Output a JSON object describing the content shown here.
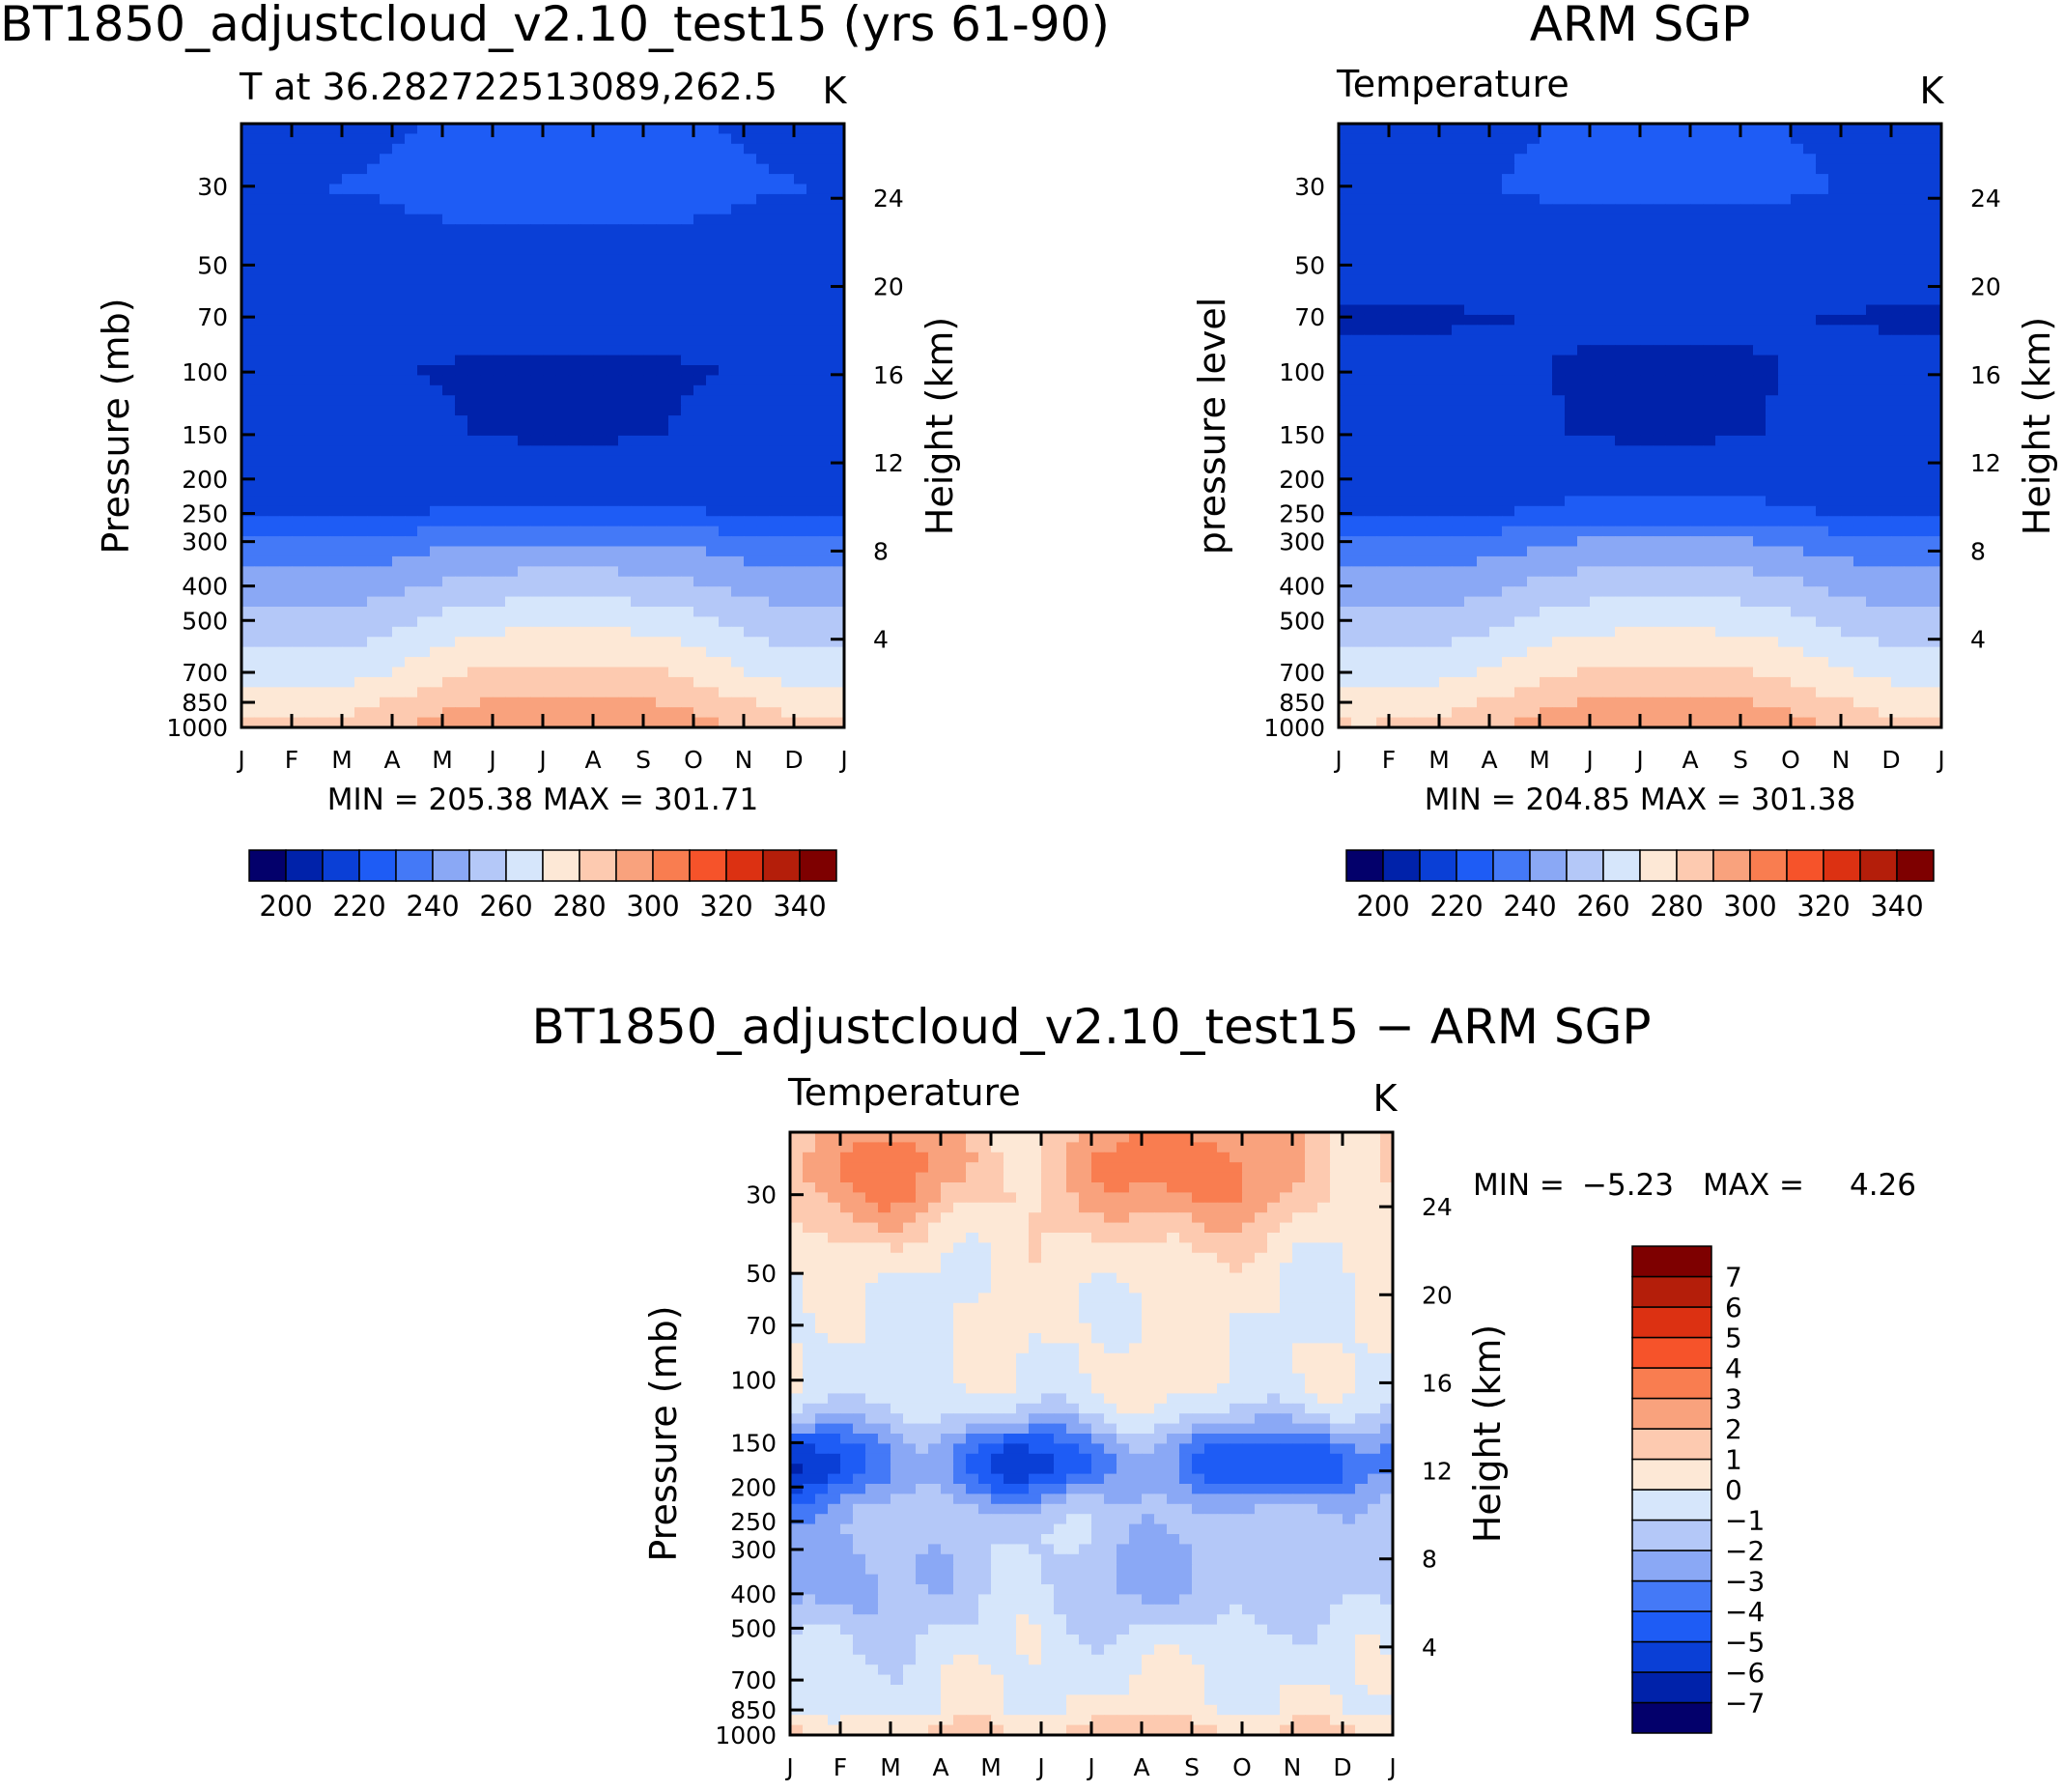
{
  "chart_data": [
    {
      "type": "heatmap",
      "title": "BT1850_adjustcloud_v2.10_test15 (yrs 61-90)",
      "subtitle_left": "T at 36.282722513089,262.5",
      "units": "K",
      "ylabel": "Pressure (mb)",
      "ylabel_right": "Height (km)",
      "x_tick_labels": [
        "J",
        "F",
        "M",
        "A",
        "M",
        "J",
        "J",
        "A",
        "S",
        "O",
        "N",
        "D",
        "J"
      ],
      "y_pressure_ticks": [
        30,
        50,
        70,
        100,
        150,
        200,
        250,
        300,
        400,
        500,
        700,
        850,
        1000
      ],
      "y_height_ticks": [
        4,
        8,
        12,
        16,
        20,
        24
      ],
      "ylim": [
        1000,
        20
      ],
      "stats_text": "MIN = 205.38 MAX = 301.71",
      "min": 205.38,
      "max": 301.71,
      "colorbar": {
        "levels": [
          190,
          200,
          210,
          220,
          230,
          240,
          250,
          260,
          270,
          280,
          290,
          300,
          310,
          320,
          330,
          340,
          350
        ],
        "tick_labels": [
          "200",
          "220",
          "240",
          "260",
          "280",
          "300",
          "320",
          "340"
        ],
        "colors": [
          "#03006b",
          "#0022aa",
          "#0a3fd6",
          "#1e5cf5",
          "#4479f7",
          "#8aa8f5",
          "#b4c8f8",
          "#d6e6fb",
          "#fde8d6",
          "#fdcab0",
          "#f9a27d",
          "#f97d50",
          "#f6532a",
          "#dc3112",
          "#b41e0a",
          "#7e0000"
        ]
      },
      "profile": {
        "pressure_mb": [
          20,
          30,
          50,
          70,
          100,
          150,
          200,
          250,
          300,
          400,
          500,
          700,
          850,
          1000
        ],
        "temperature_k_jan": [
          218,
          220,
          216,
          212,
          211,
          216,
          217,
          218,
          232,
          244,
          253,
          265,
          276,
          282
        ],
        "temperature_k_jul": [
          222,
          224,
          216,
          212,
          209,
          209,
          216,
          222,
          240,
          255,
          267,
          283,
          292,
          301
        ]
      }
    },
    {
      "type": "heatmap",
      "title": "ARM SGP",
      "subtitle_left": "Temperature",
      "units": "K",
      "ylabel": "pressure level",
      "ylabel_right": "Height (km)",
      "x_tick_labels": [
        "J",
        "F",
        "M",
        "A",
        "M",
        "J",
        "J",
        "A",
        "S",
        "O",
        "N",
        "D",
        "J"
      ],
      "y_pressure_ticks": [
        30,
        50,
        70,
        100,
        150,
        200,
        250,
        300,
        400,
        500,
        700,
        850,
        1000
      ],
      "y_height_ticks": [
        4,
        8,
        12,
        16,
        20,
        24
      ],
      "ylim": [
        1000,
        20
      ],
      "stats_text": "MIN = 204.85 MAX = 301.38",
      "min": 204.85,
      "max": 301.38,
      "colorbar": {
        "levels": [
          190,
          200,
          210,
          220,
          230,
          240,
          250,
          260,
          270,
          280,
          290,
          300,
          310,
          320,
          330,
          340,
          350
        ],
        "tick_labels": [
          "200",
          "220",
          "240",
          "260",
          "280",
          "300",
          "320",
          "340"
        ],
        "colors": [
          "#03006b",
          "#0022aa",
          "#0a3fd6",
          "#1e5cf5",
          "#4479f7",
          "#8aa8f5",
          "#b4c8f8",
          "#d6e6fb",
          "#fde8d6",
          "#fdcab0",
          "#f9a27d",
          "#f97d50",
          "#f6532a",
          "#dc3112",
          "#b41e0a",
          "#7e0000"
        ]
      },
      "profile": {
        "pressure_mb": [
          20,
          30,
          50,
          70,
          100,
          150,
          200,
          250,
          300,
          400,
          500,
          700,
          850,
          1000
        ],
        "temperature_k_jan": [
          217,
          219,
          214,
          209,
          213,
          216,
          217,
          218,
          232,
          244,
          253,
          266,
          276,
          281
        ],
        "temperature_k_jul": [
          221,
          222,
          215,
          211,
          209,
          209,
          216,
          223,
          241,
          256,
          267,
          282,
          292,
          300
        ]
      }
    },
    {
      "type": "heatmap",
      "title": "BT1850_adjustcloud_v2.10_test15 − ARM SGP",
      "subtitle_left": "Temperature",
      "units": "K",
      "ylabel": "Pressure (mb)",
      "ylabel_right": "Height (km)",
      "x_tick_labels": [
        "J",
        "F",
        "M",
        "A",
        "M",
        "J",
        "J",
        "A",
        "S",
        "O",
        "N",
        "D",
        "J"
      ],
      "y_pressure_ticks": [
        30,
        50,
        70,
        100,
        150,
        200,
        250,
        300,
        400,
        500,
        700,
        850,
        1000
      ],
      "y_height_ticks": [
        4,
        8,
        12,
        16,
        20,
        24
      ],
      "ylim": [
        1000,
        20
      ],
      "stats_label_min": "MIN =",
      "stats_min_value": "−5.23",
      "stats_label_max": "MAX =",
      "stats_max_value": "4.26",
      "min": -5.23,
      "max": 4.26,
      "colorbar": {
        "levels": [
          -8,
          -7,
          -6,
          -5,
          -4,
          -3,
          -2,
          -1,
          0,
          1,
          2,
          3,
          4,
          5,
          6,
          7,
          8
        ],
        "tick_labels": [
          "−7",
          "−6",
          "−5",
          "−4",
          "−3",
          "−2",
          "−1",
          "0",
          "1",
          "2",
          "3",
          "4",
          "5",
          "6",
          "7"
        ],
        "colors": [
          "#03006b",
          "#0022aa",
          "#0a3fd6",
          "#1e5cf5",
          "#4479f7",
          "#8aa8f5",
          "#b4c8f8",
          "#d6e6fb",
          "#fde8d6",
          "#fdcab0",
          "#f9a27d",
          "#f97d50",
          "#f6532a",
          "#dc3112",
          "#b41e0a",
          "#7e0000"
        ]
      }
    }
  ]
}
